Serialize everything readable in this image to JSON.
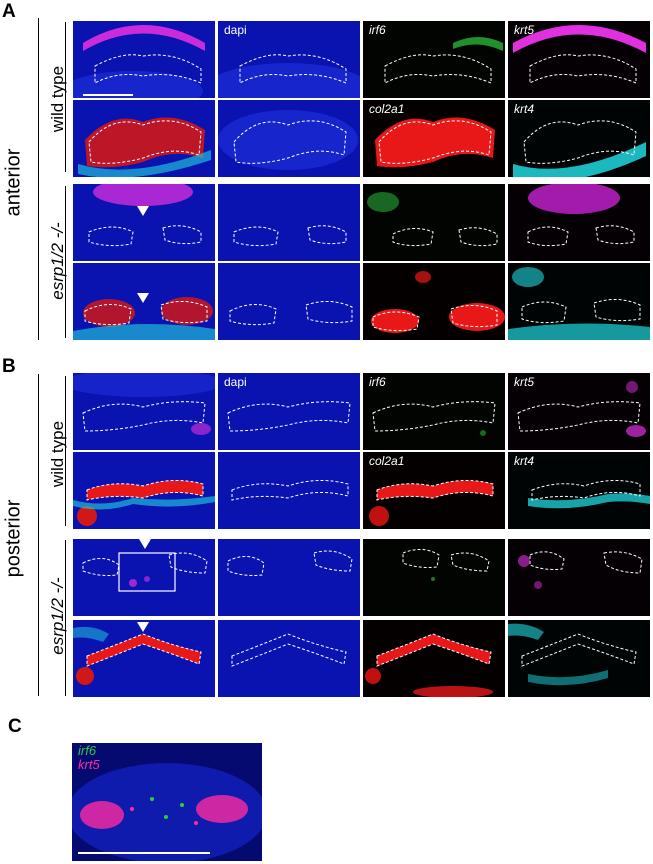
{
  "panels": {
    "a": "A",
    "b": "B",
    "c": "C"
  },
  "row_groups": {
    "anterior": "anterior",
    "posterior": "posterior"
  },
  "genotypes": {
    "wild_type": "wild type",
    "mutant": "esrp1/2 -/-"
  },
  "channel_labels": {
    "dapi": "dapi",
    "irf6": "irf6",
    "krt5": "krt5",
    "col2a1": "col2a1",
    "krt4": "krt4"
  },
  "inset_labels": {
    "irf6": "irf6",
    "krt5": "krt5"
  },
  "channel_colors": {
    "dapi": "#1a2bff",
    "irf6": "#2ecc40",
    "krt5": "#e030e0",
    "col2a1": "#e81818",
    "krt4": "#20d8e0",
    "inset_irf6": "#2ecc40",
    "inset_krt5": "#ff2aa0"
  }
}
